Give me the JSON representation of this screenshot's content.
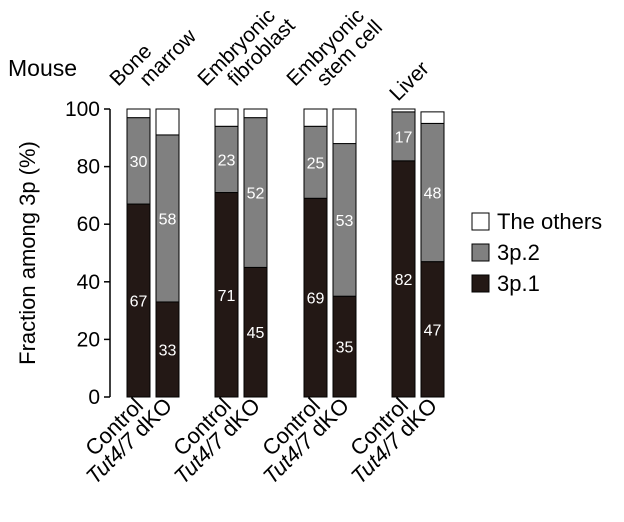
{
  "chart_data": {
    "type": "bar",
    "stacked": true,
    "species_label": "Mouse",
    "ylabel": "Fraction among 3p (%)",
    "ylim": [
      0,
      100
    ],
    "yticks": [
      0,
      20,
      40,
      60,
      80,
      100
    ],
    "groups": [
      {
        "name_lines": [
          "Bone",
          "marrow"
        ]
      },
      {
        "name_lines": [
          "Embryonic",
          "fibroblast"
        ]
      },
      {
        "name_lines": [
          "Embryonic",
          "stem cell"
        ]
      },
      {
        "name_lines": [
          "Liver"
        ]
      }
    ],
    "conditions": [
      {
        "label": "Control",
        "italic_part": "",
        "rest": "Control"
      },
      {
        "label": "Tut4/7 dKO",
        "italic_part": "Tut4/7",
        "rest": " dKO"
      }
    ],
    "series": [
      {
        "name": "3p.1",
        "color": "#231815",
        "label_color": "#ffffff",
        "values": [
          [
            67,
            33
          ],
          [
            71,
            45
          ],
          [
            69,
            35
          ],
          [
            82,
            47
          ]
        ]
      },
      {
        "name": "3p.2",
        "color": "#808080",
        "label_color": "#ffffff",
        "values": [
          [
            30,
            58
          ],
          [
            23,
            52
          ],
          [
            25,
            53
          ],
          [
            17,
            48
          ]
        ]
      },
      {
        "name": "The others",
        "color": "#ffffff",
        "label_color": "",
        "values": [
          [
            3,
            9
          ],
          [
            6,
            3
          ],
          [
            6,
            12
          ],
          [
            1,
            4
          ]
        ]
      }
    ],
    "labeled_series": [
      "3p.1",
      "3p.2"
    ],
    "legend": {
      "position": "right",
      "entries": [
        "The others",
        "3p.2",
        "3p.1"
      ]
    }
  }
}
